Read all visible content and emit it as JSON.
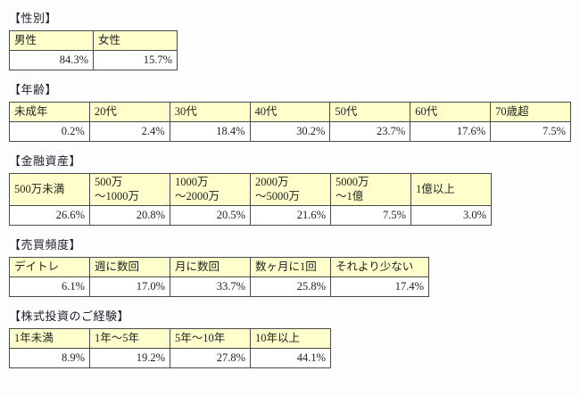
{
  "colors": {
    "header_bg": "#ffffcc",
    "cell_bg": "#ffffff",
    "border": "#4a4a4a",
    "text": "#1f1f1f"
  },
  "sections": [
    {
      "title": "【性別】",
      "headers": [
        "男性",
        "女性"
      ],
      "values": [
        "84.3%",
        "15.7%"
      ]
    },
    {
      "title": "【年齢】",
      "headers": [
        "未成年",
        "20代",
        "30代",
        "40代",
        "50代",
        "60代",
        "70歳超"
      ],
      "values": [
        "0.2%",
        "2.4%",
        "18.4%",
        "30.2%",
        "23.7%",
        "17.6%",
        "7.5%"
      ]
    },
    {
      "title": "【金融資産】",
      "headers": [
        "500万未満",
        "500万\n～1000万",
        "1000万\n～2000万",
        "2000万\n～5000万",
        "5000万\n～1億",
        "1億以上"
      ],
      "values": [
        "26.6%",
        "20.8%",
        "20.5%",
        "21.6%",
        "7.5%",
        "3.0%"
      ]
    },
    {
      "title": "【売買頻度】",
      "headers": [
        "デイトレ",
        "週に数回",
        "月に数回",
        "数ヶ月に1回",
        "それより少ない"
      ],
      "values": [
        "6.1%",
        "17.0%",
        "33.7%",
        "25.8%",
        "17.4%"
      ]
    },
    {
      "title": "【株式投資のご経験】",
      "headers": [
        "1年未満",
        "1年～5年",
        "5年～10年",
        "10年以上"
      ],
      "values": [
        "8.9%",
        "19.2%",
        "27.8%",
        "44.1%"
      ]
    }
  ]
}
